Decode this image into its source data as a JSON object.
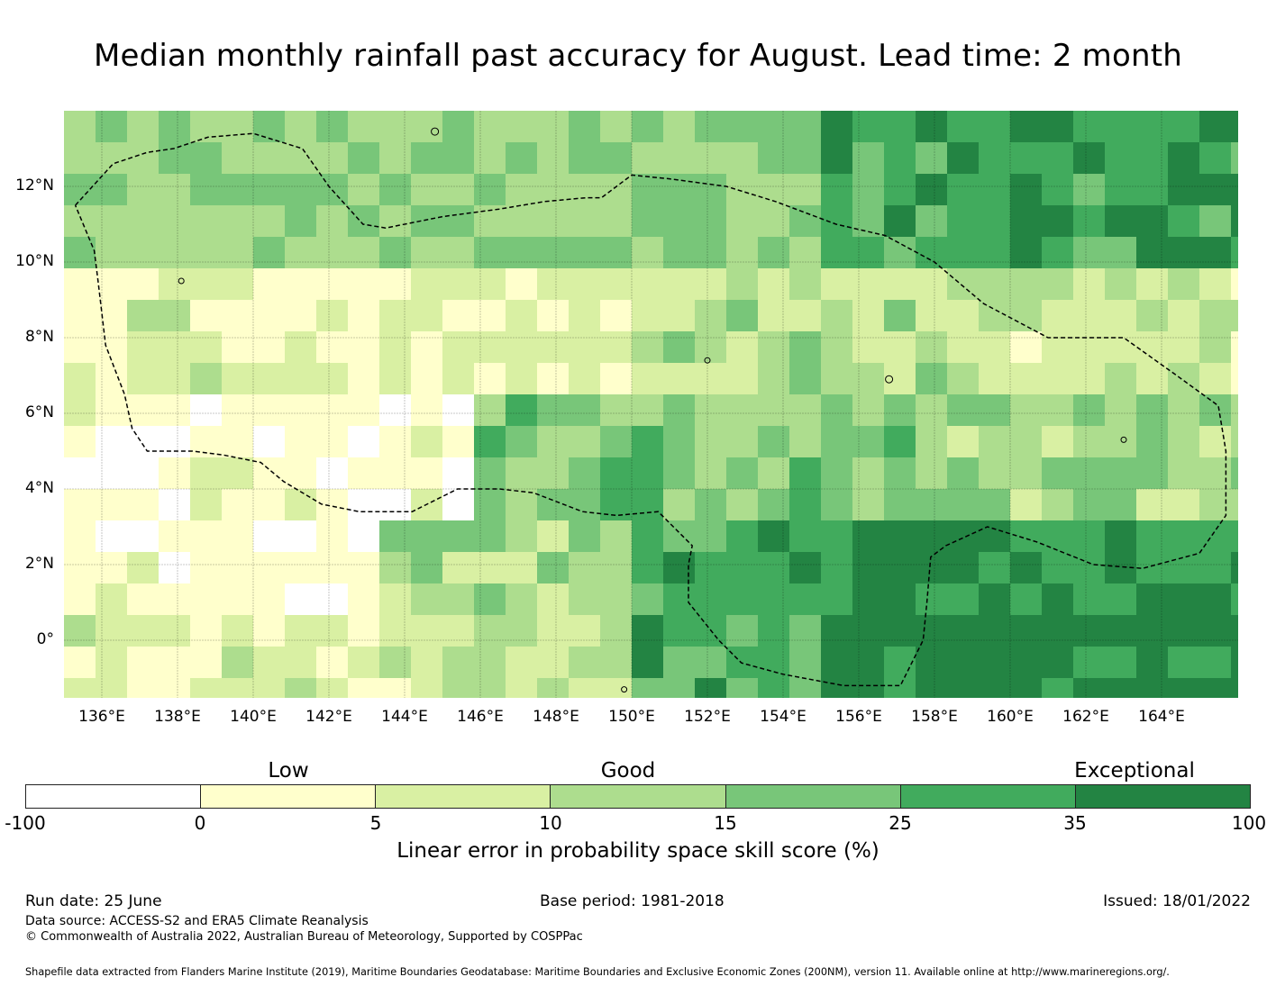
{
  "title": "Median monthly rainfall past accuracy for August. Lead time: 2 month",
  "map": {
    "lat_labels": [
      "12°N",
      "10°N",
      "8°N",
      "6°N",
      "4°N",
      "2°N",
      "0°"
    ],
    "lon_labels": [
      "136°E",
      "138°E",
      "140°E",
      "142°E",
      "144°E",
      "146°E",
      "148°E",
      "150°E",
      "152°E",
      "154°E",
      "156°E",
      "158°E",
      "160°E",
      "162°E",
      "164°E"
    ],
    "lat_range": [
      "-1.5°",
      "14°N"
    ],
    "lon_range": [
      "135°E",
      "166°E"
    ],
    "gridlines": true,
    "boundary": "dashed EEZ outline"
  },
  "legend": {
    "categories": [
      "Low",
      "Good",
      "Exceptional"
    ],
    "ticks": [
      "-100",
      "0",
      "5",
      "10",
      "15",
      "25",
      "35",
      "100"
    ],
    "colors": [
      "#ffffff",
      "#ffffcc",
      "#d9f0a3",
      "#addd8e",
      "#78c679",
      "#41ab5d",
      "#238443"
    ],
    "label": "Linear error in probability space skill score (%)"
  },
  "footer": {
    "run_date": "Run date: 25 June",
    "base_period": "Base period: 1981-2018",
    "issued": "Issued: 18/01/2022",
    "data_source": "Data source: ACCESS-S2 and ERA5 Climate Reanalysis",
    "copyright": "© Commonwealth of Australia 2022, Australian Bureau of Meteorology, Supported by COSPPac",
    "shapefile": "Shapefile data extracted from Flanders Marine Institute (2019), Maritime Boundaries Geodatabase: Maritime Boundaries and Exclusive Economic Zones (200NM), version 11. Available online at http://www.marineregions.org/."
  }
}
